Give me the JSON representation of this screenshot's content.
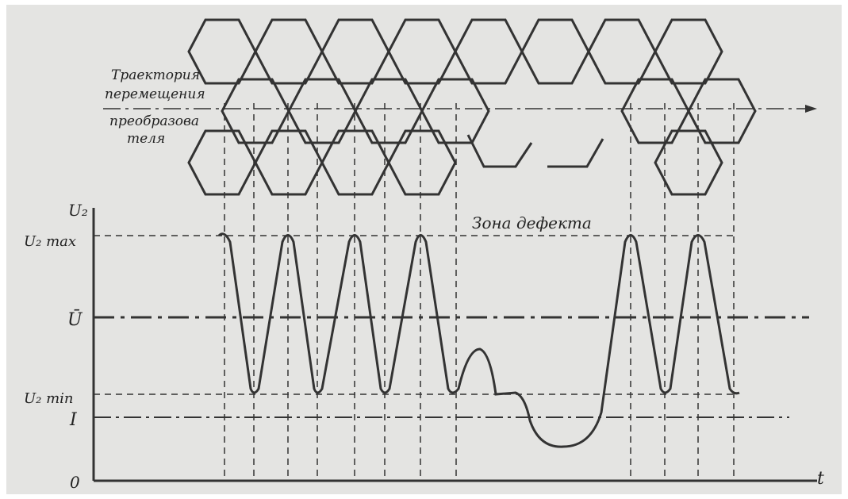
{
  "annotations": {
    "trajectory": [
      "Траектория",
      "перемещения",
      "преобразова",
      "теля"
    ],
    "defect_zone": "Зона дефекта"
  },
  "axes": {
    "y_label": "U₂",
    "x_label": "t",
    "origin": "0",
    "levels": {
      "u_max": "U₂ max",
      "u_mean": "Ū",
      "u_min": "U₂ min",
      "threshold": "I"
    }
  }
}
